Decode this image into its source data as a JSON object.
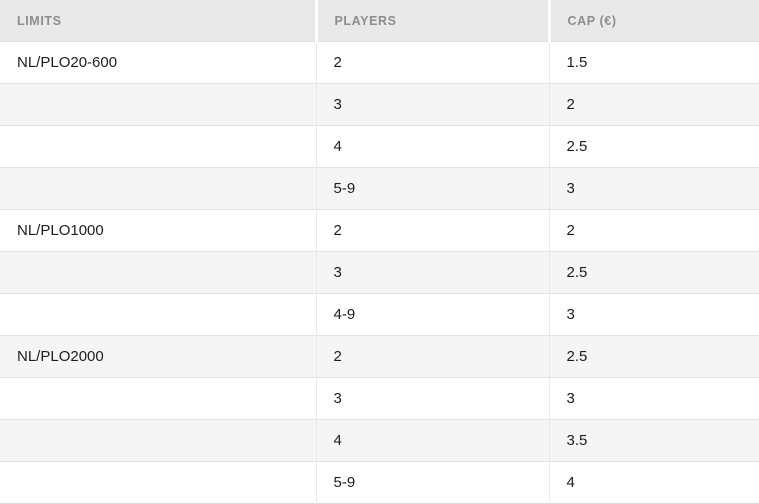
{
  "colors": {
    "page-bg": "#ffffff",
    "header-bg": "#e9e9e9",
    "header-text": "#8d8d8d",
    "row-bg": "#ffffff",
    "row-alt-bg": "#f5f5f5",
    "body-text": "#1d1d1d",
    "border": "#e2e2e2",
    "divider": "#e9e9e9",
    "table-bottom-border": "#d9d9d9"
  },
  "table": {
    "columns": [
      {
        "id": "limits",
        "label": "LIMITS"
      },
      {
        "id": "players",
        "label": "PLAYERS"
      },
      {
        "id": "cap",
        "label": "CAP (€)"
      }
    ],
    "rows": [
      {
        "limits": "NL/PLO20-600",
        "players": "2",
        "cap": "1.5"
      },
      {
        "limits": "",
        "players": "3",
        "cap": "2"
      },
      {
        "limits": "",
        "players": "4",
        "cap": "2.5"
      },
      {
        "limits": "",
        "players": "5-9",
        "cap": "3"
      },
      {
        "limits": "NL/PLO1000",
        "players": "2",
        "cap": "2"
      },
      {
        "limits": "",
        "players": "3",
        "cap": "2.5"
      },
      {
        "limits": "",
        "players": "4-9",
        "cap": "3"
      },
      {
        "limits": "NL/PLO2000",
        "players": "2",
        "cap": "2.5"
      },
      {
        "limits": "",
        "players": "3",
        "cap": "3"
      },
      {
        "limits": "",
        "players": "4",
        "cap": "3.5"
      },
      {
        "limits": "",
        "players": "5-9",
        "cap": "4"
      }
    ]
  }
}
